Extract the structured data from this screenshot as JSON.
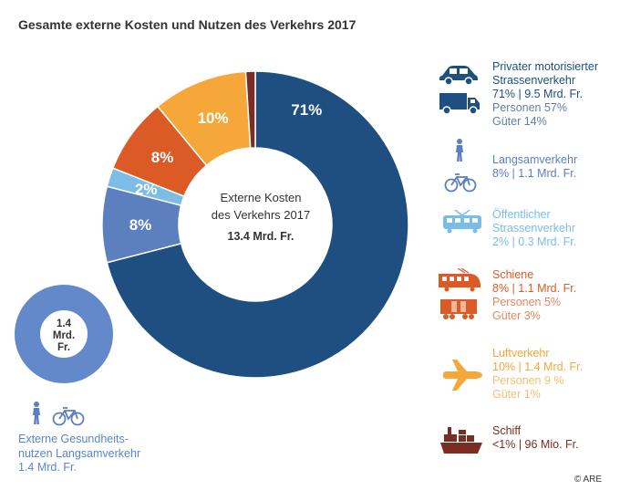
{
  "title": "Gesamte externe Kosten und Nutzen des Verkehrs 2017",
  "chart_data": [
    {
      "type": "pie",
      "categories": [
        "Privater motorisierter Strassenverkehr",
        "Langsamverkehr",
        "Öffentlicher Strassenverkehr",
        "Schiene",
        "Luftverkehr",
        "Schiff"
      ],
      "values": [
        71,
        8,
        2,
        8,
        10,
        1
      ],
      "value_labels": [
        "71%",
        "8%",
        "2%",
        "8%",
        "10%",
        ""
      ],
      "colors": [
        "#1e4f80",
        "#5b7fbf",
        "#7cbde6",
        "#dc5a26",
        "#f6a73a",
        "#7a2d20"
      ],
      "center_label": [
        "Externe Kosten",
        "des Verkehrs 2017"
      ],
      "center_value": "13.4 Mrd. Fr."
    },
    {
      "type": "pie",
      "categories": [
        "Externe Gesundheitsnutzen Langsamverkehr"
      ],
      "values": [
        1.4
      ],
      "colors": [
        "#6489ca"
      ],
      "center_label": [
        "1.4",
        "Mrd.",
        "Fr."
      ]
    }
  ],
  "legend": [
    {
      "title": [
        "Privater motorisierter",
        "Strassenverkehr"
      ],
      "value": "71% | 9.5 Mrd. Fr.",
      "details": [
        "Personen 57%",
        "Güter 14%"
      ],
      "color": "#1e4f80",
      "icons": [
        "car-icon",
        "truck-icon"
      ]
    },
    {
      "title": [
        "Langsamverkehr"
      ],
      "value": "8% | 1.1 Mrd. Fr.",
      "details": [],
      "color": "#5b7fbf",
      "icons": [
        "pedestrian-icon",
        "bicycle-icon"
      ]
    },
    {
      "title": [
        "Öffentlicher",
        "Strassenverkehr"
      ],
      "value": "2% | 0.3 Mrd. Fr.",
      "details": [],
      "color": "#7cbde6",
      "icons": [
        "tram-icon"
      ]
    },
    {
      "title": [
        "Schiene"
      ],
      "value": "8% | 1.1 Mrd. Fr.",
      "details": [
        "Personen 5%",
        "Güter 3%"
      ],
      "color": "#dc5a26",
      "icons": [
        "train-icon",
        "freight-wagon-icon"
      ]
    },
    {
      "title": [
        "Luftverkehr"
      ],
      "value": "10% | 1.4 Mrd. Fr.",
      "details": [
        "Personen 9 %",
        "Güter 1%"
      ],
      "color": "#f6a73a",
      "icons": [
        "airplane-icon"
      ]
    },
    {
      "title": [
        "Schiff"
      ],
      "value": "<1% | 96 Mio. Fr.",
      "details": [],
      "color": "#7a2d20",
      "icons": [
        "ship-icon"
      ]
    }
  ],
  "benefit": {
    "lines": [
      "Externe Gesundheits-",
      "nutzen Langsamverkehr",
      "1.4 Mrd. Fr."
    ],
    "icons": [
      "pedestrian-icon",
      "bicycle-icon"
    ]
  },
  "copyright": "© ARE"
}
